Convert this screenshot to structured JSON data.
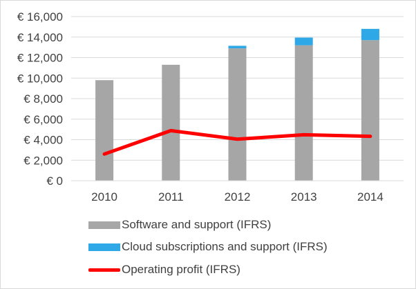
{
  "chart_data": {
    "type": "bar",
    "categories": [
      "2010",
      "2011",
      "2012",
      "2013",
      "2014"
    ],
    "ylim": [
      0,
      16000
    ],
    "y_tick_values": [
      0,
      2000,
      4000,
      6000,
      8000,
      10000,
      12000,
      14000,
      16000
    ],
    "y_tick_labels": [
      "€ 0",
      "€ 2,000",
      "€ 4,000",
      "€ 6,000",
      "€ 8,000",
      "€ 10,000",
      "€ 12,000",
      "€ 14,000",
      "€ 16,000"
    ],
    "grid": true,
    "legend_position": "bottom",
    "stacked": true,
    "series": [
      {
        "name": "Software and support (IFRS)",
        "kind": "bar",
        "color": "#a6a6a6",
        "values": [
          9800,
          11300,
          12900,
          13200,
          13700
        ]
      },
      {
        "name": "Cloud subscriptions and support (IFRS)",
        "kind": "bar",
        "color": "#2ea8e6",
        "values": [
          0,
          0,
          250,
          750,
          1100
        ]
      },
      {
        "name": "Operating profit (IFRS)",
        "kind": "line",
        "color": "#ff0000",
        "values": [
          2600,
          4880,
          4050,
          4480,
          4330
        ]
      }
    ]
  }
}
